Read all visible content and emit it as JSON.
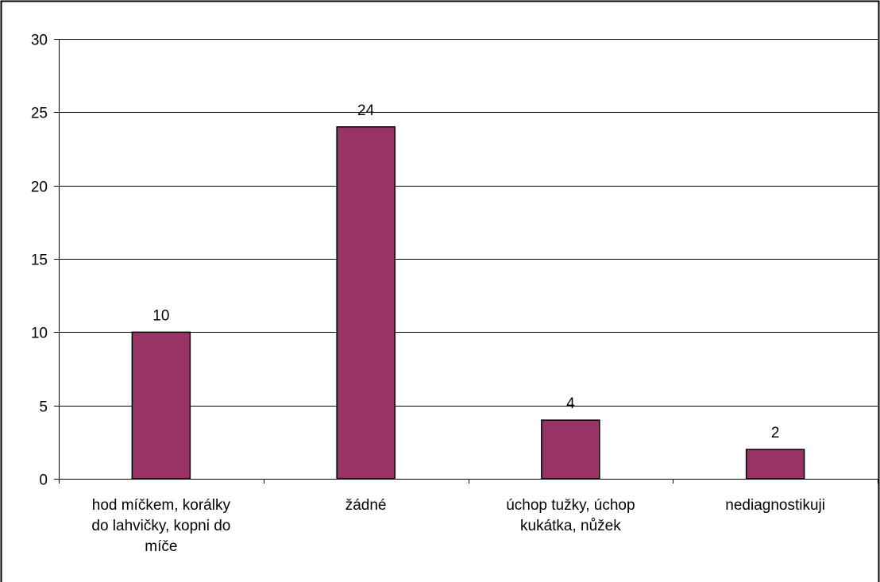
{
  "colors": {
    "bar_fill": "#993366",
    "bar_stroke": "#000000",
    "grid": "#000000",
    "background": "#ffffff"
  },
  "chart_data": {
    "type": "bar",
    "categories": [
      [
        "hod míčkem, korálky",
        "do lahvičky, kopni do",
        "míče"
      ],
      [
        "žádné"
      ],
      [
        "úchop tužky, úchop",
        "kukátka, nůžek"
      ],
      [
        "nediagnostikuji"
      ]
    ],
    "values": [
      10,
      24,
      4,
      2
    ],
    "ylim": [
      0,
      30
    ],
    "yticks": [
      0,
      5,
      10,
      15,
      20,
      25,
      30
    ],
    "grid": true,
    "data_labels": true
  }
}
